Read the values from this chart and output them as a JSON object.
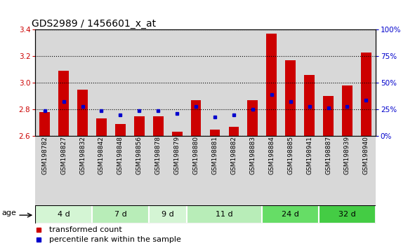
{
  "title": "GDS2989 / 1456601_x_at",
  "samples": [
    "GSM198782",
    "GSM198827",
    "GSM198832",
    "GSM198842",
    "GSM198848",
    "GSM198856",
    "GSM198878",
    "GSM198879",
    "GSM198880",
    "GSM198881",
    "GSM198882",
    "GSM198883",
    "GSM198884",
    "GSM198885",
    "GSM198941",
    "GSM198887",
    "GSM198939",
    "GSM198940"
  ],
  "red_values": [
    2.78,
    3.09,
    2.95,
    2.73,
    2.69,
    2.75,
    2.75,
    2.63,
    2.87,
    2.65,
    2.67,
    2.87,
    3.37,
    3.17,
    3.06,
    2.9,
    2.98,
    3.23
  ],
  "blue_values": [
    2.79,
    2.86,
    2.82,
    2.79,
    2.76,
    2.79,
    2.79,
    2.77,
    2.82,
    2.74,
    2.76,
    2.8,
    2.91,
    2.86,
    2.82,
    2.81,
    2.82,
    2.87
  ],
  "groups": [
    {
      "label": "4 d",
      "count": 3,
      "color": "#d4f5d4"
    },
    {
      "label": "7 d",
      "count": 3,
      "color": "#b8edb8"
    },
    {
      "label": "9 d",
      "count": 2,
      "color": "#d4f5d4"
    },
    {
      "label": "11 d",
      "count": 4,
      "color": "#b8edb8"
    },
    {
      "label": "24 d",
      "count": 3,
      "color": "#66dd66"
    },
    {
      "label": "32 d",
      "count": 3,
      "color": "#44cc44"
    }
  ],
  "ylim_left": [
    2.6,
    3.4
  ],
  "ylim_right": [
    0,
    100
  ],
  "yticks_left": [
    2.6,
    2.8,
    3.0,
    3.2,
    3.4
  ],
  "yticks_right": [
    0,
    25,
    50,
    75,
    100
  ],
  "ytick_labels_right": [
    "0%",
    "25%",
    "50%",
    "75%",
    "100%"
  ],
  "red_color": "#cc0000",
  "blue_color": "#0000cc",
  "col_bg_color": "#d8d8d8",
  "bar_width": 0.55,
  "title_fontsize": 10,
  "tick_fontsize": 7.5,
  "label_fontsize": 8
}
